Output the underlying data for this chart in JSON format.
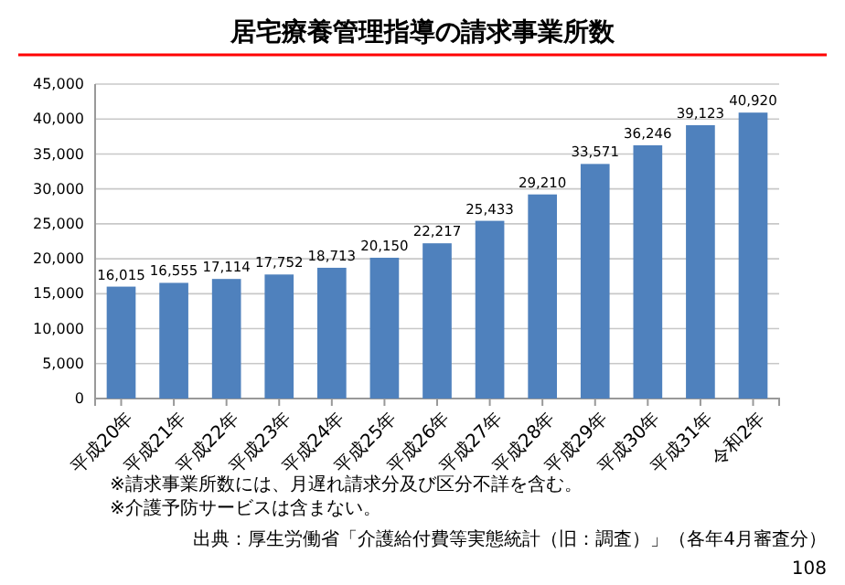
{
  "chart_data": {
    "type": "bar",
    "title": "居宅療養管理指導の請求事業所数",
    "categories": [
      "平成20年",
      "平成21年",
      "平成22年",
      "平成23年",
      "平成24年",
      "平成25年",
      "平成26年",
      "平成27年",
      "平成28年",
      "平成29年",
      "平成30年",
      "平成31年",
      "令和2年"
    ],
    "values": [
      16015,
      16555,
      17114,
      17752,
      18713,
      20150,
      22217,
      25433,
      29210,
      33571,
      36246,
      39123,
      40920
    ],
    "color": "#4f81bd",
    "ylim": [
      0,
      45000
    ],
    "yticks": [
      {
        "value": 0,
        "label": "0"
      },
      {
        "value": 5000,
        "label": "5,000"
      },
      {
        "value": 10000,
        "label": "10,000"
      },
      {
        "value": 15000,
        "label": "15,000"
      },
      {
        "value": 20000,
        "label": "20,000"
      },
      {
        "value": 25000,
        "label": "25,000"
      },
      {
        "value": 30000,
        "label": "30,000"
      },
      {
        "value": 35000,
        "label": "35,000"
      },
      {
        "value": 40000,
        "label": "40,000"
      },
      {
        "value": 45000,
        "label": "45,000"
      }
    ],
    "grid": "y",
    "value_labels": [
      "16,015",
      "16,555",
      "17,114",
      "17,752",
      "18,713",
      "20,150",
      "22,217",
      "25,433",
      "29,210",
      "33,571",
      "36,246",
      "39,123",
      "40,920"
    ],
    "annotations": [
      "※請求事業所数には、月遅れ請求分及び区分不詳を含む。",
      "※介護予防サービスは含まない。",
      "出典：厚生労働省「介護給付費等実態統計（旧：調査）」（各年4月審査分）",
      "108"
    ]
  }
}
